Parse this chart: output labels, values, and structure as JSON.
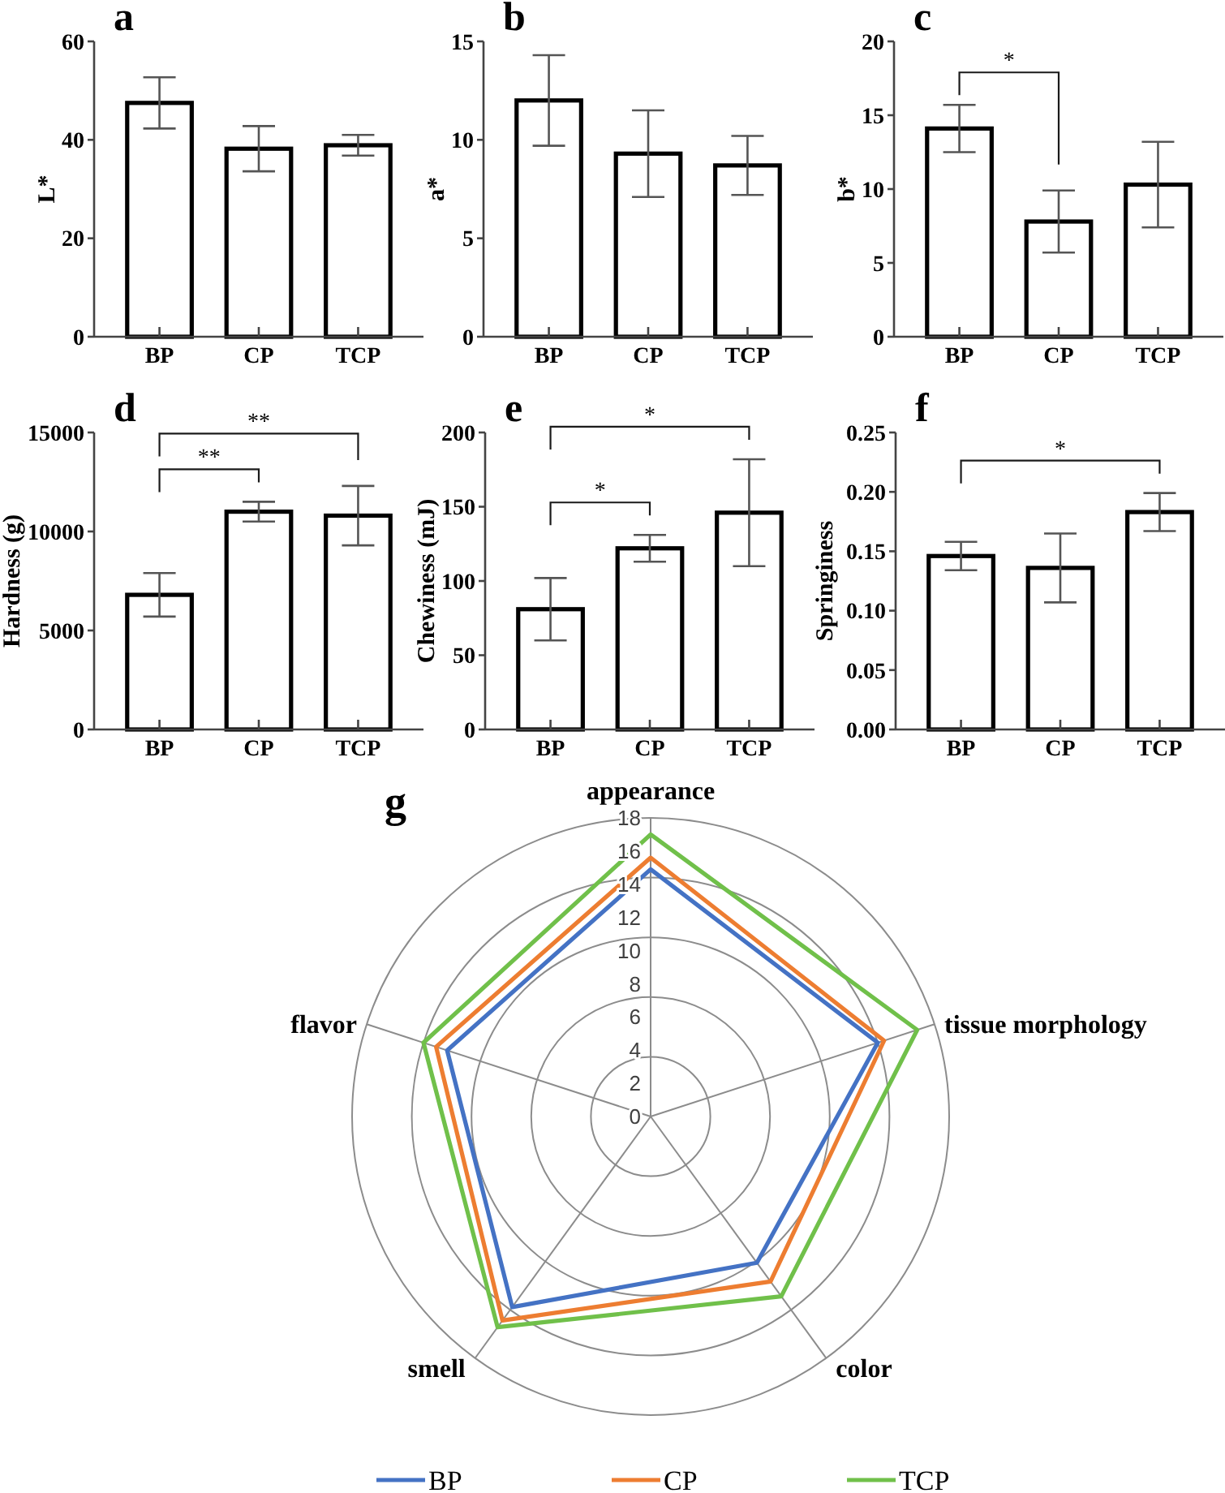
{
  "chart_data": [
    {
      "type": "bar",
      "title": "a",
      "ylabel": "L*",
      "categories": [
        "BP",
        "CP",
        "TCP"
      ],
      "values": [
        47.5,
        38.2,
        38.9
      ],
      "errors": [
        5.2,
        4.6,
        2.1
      ],
      "color": "#ffffff",
      "ylim": [
        0,
        60
      ],
      "yticks": [
        0,
        20,
        40,
        60
      ]
    },
    {
      "type": "bar",
      "title": "b",
      "ylabel": "a*",
      "categories": [
        "BP",
        "CP",
        "TCP"
      ],
      "values": [
        12.0,
        9.3,
        8.7
      ],
      "errors": [
        2.3,
        2.2,
        1.5
      ],
      "color": "#ffffff",
      "ylim": [
        0,
        15
      ],
      "yticks": [
        0,
        5,
        10,
        15
      ]
    },
    {
      "type": "bar",
      "title": "c",
      "ylabel": "b*",
      "categories": [
        "BP",
        "CP",
        "TCP"
      ],
      "values": [
        14.1,
        7.8,
        10.3
      ],
      "errors": [
        1.6,
        2.1,
        2.9
      ],
      "color": "#ffffff",
      "ylim": [
        0,
        20
      ],
      "yticks": [
        0,
        5,
        10,
        15,
        20
      ],
      "annotations": [
        "*"
      ]
    },
    {
      "type": "bar",
      "title": "d",
      "ylabel": "Hardness (g)",
      "categories": [
        "BP",
        "CP",
        "TCP"
      ],
      "values": [
        6800,
        11000,
        10800
      ],
      "errors": [
        1100,
        500,
        1500
      ],
      "color": "#ffffff",
      "ylim": [
        0,
        15000
      ],
      "yticks": [
        0,
        5000,
        10000,
        15000
      ],
      "annotations": [
        "**",
        "**"
      ]
    },
    {
      "type": "bar",
      "title": "e",
      "ylabel": "Chewiness (mJ)",
      "categories": [
        "BP",
        "CP",
        "TCP"
      ],
      "values": [
        81,
        122,
        146
      ],
      "errors": [
        21,
        9,
        36
      ],
      "color": "#ffffff",
      "ylim": [
        0,
        200
      ],
      "yticks": [
        0,
        50,
        100,
        150,
        200
      ],
      "annotations": [
        "*",
        "*"
      ]
    },
    {
      "type": "bar",
      "title": "f",
      "ylabel": "Springiness",
      "categories": [
        "BP",
        "CP",
        "TCP"
      ],
      "values": [
        0.146,
        0.136,
        0.183
      ],
      "errors": [
        0.012,
        0.029,
        0.016
      ],
      "color": "#ffffff",
      "ylim": [
        0,
        0.25
      ],
      "yticks": [
        {
          "value": 0,
          "label": "0.00"
        },
        {
          "value": 0.05,
          "label": "0.05"
        },
        {
          "value": 0.1,
          "label": "0.10"
        },
        {
          "value": 0.15,
          "label": "0.15"
        },
        {
          "value": 0.2,
          "label": "0.20"
        },
        {
          "value": 0.25,
          "label": "0.25"
        }
      ],
      "annotations": [
        "*"
      ]
    },
    {
      "type": "radar",
      "title": "g",
      "categories": [
        "appearance",
        "tissue morphology",
        "color",
        "smell",
        "flavor"
      ],
      "series": [
        {
          "name": "BP",
          "color": "#4472c4",
          "values": [
            14.9,
            14.4,
            10.9,
            14.2,
            12.9
          ]
        },
        {
          "name": "CP",
          "color": "#ed7d31",
          "values": [
            15.6,
            14.8,
            12.3,
            15.2,
            13.6
          ]
        },
        {
          "name": "TCP",
          "color": "#70c04a",
          "values": [
            17.0,
            16.9,
            13.4,
            15.7,
            14.4
          ]
        }
      ],
      "ylim": [
        0,
        18
      ],
      "yticks": [
        0,
        2,
        4,
        6,
        8,
        10,
        12,
        14,
        16,
        18
      ],
      "grid": true,
      "legend": "bottom"
    }
  ]
}
